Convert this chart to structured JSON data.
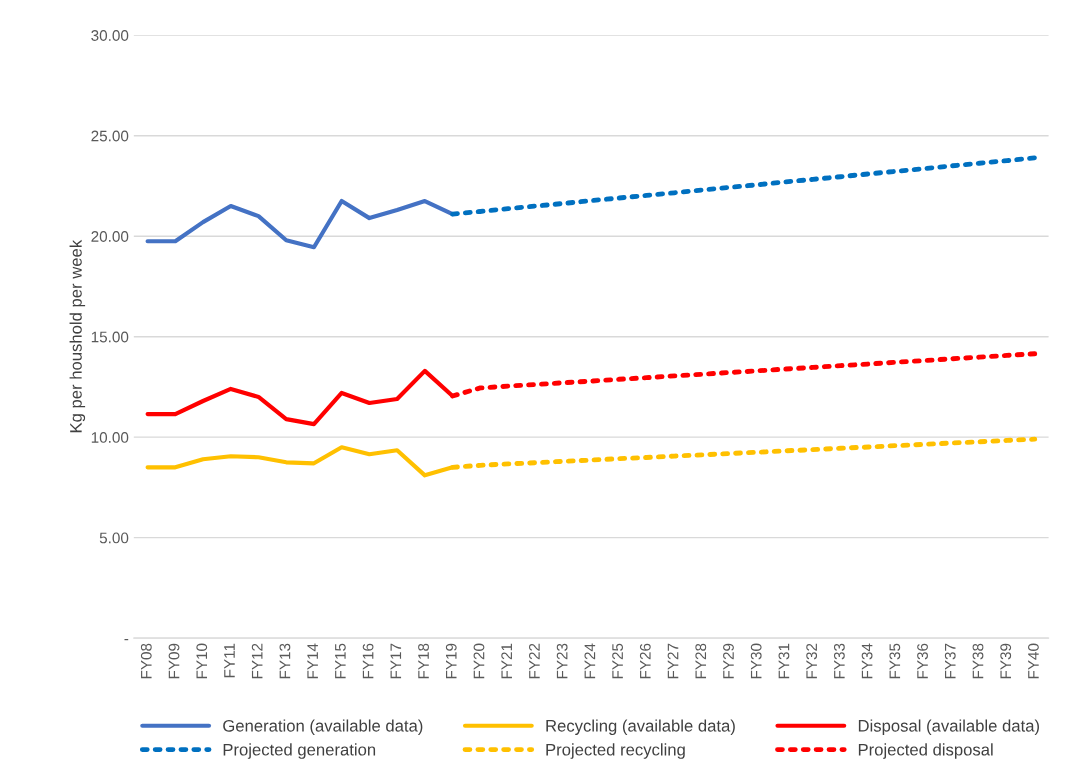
{
  "chart_data": {
    "type": "line",
    "ylabel": "Kg per houshold per week",
    "categories": [
      "FY08",
      "FY09",
      "FY10",
      "FY11",
      "FY12",
      "FY13",
      "FY14",
      "FY15",
      "FY16",
      "FY17",
      "FY18",
      "FY19",
      "FY20",
      "FY21",
      "FY22",
      "FY23",
      "FY24",
      "FY25",
      "FY26",
      "FY27",
      "FY28",
      "FY29",
      "FY30",
      "FY31",
      "FY32",
      "FY33",
      "FY34",
      "FY35",
      "FY36",
      "FY37",
      "FY38",
      "FY39",
      "FY40"
    ],
    "series": [
      {
        "name": "Generation (available data)",
        "color": "#4472c4",
        "line_style": "solid",
        "values": [
          19.75,
          19.75,
          20.7,
          21.5,
          21.0,
          19.8,
          19.45,
          21.75,
          20.9,
          21.3,
          21.75,
          21.1,
          null,
          null,
          null,
          null,
          null,
          null,
          null,
          null,
          null,
          null,
          null,
          null,
          null,
          null,
          null,
          null,
          null,
          null,
          null,
          null,
          null
        ]
      },
      {
        "name": "Recycling (available data)",
        "color": "#ffc000",
        "line_style": "solid",
        "values": [
          8.5,
          8.5,
          8.9,
          9.05,
          9.0,
          8.75,
          8.7,
          9.5,
          9.15,
          9.35,
          8.1,
          8.5,
          null,
          null,
          null,
          null,
          null,
          null,
          null,
          null,
          null,
          null,
          null,
          null,
          null,
          null,
          null,
          null,
          null,
          null,
          null,
          null,
          null
        ]
      },
      {
        "name": "Disposal (available data)",
        "color": "#ff0000",
        "line_style": "solid",
        "values": [
          11.15,
          11.15,
          11.8,
          12.4,
          12.0,
          10.9,
          10.65,
          12.2,
          11.7,
          11.9,
          13.3,
          12.05,
          null,
          null,
          null,
          null,
          null,
          null,
          null,
          null,
          null,
          null,
          null,
          null,
          null,
          null,
          null,
          null,
          null,
          null,
          null,
          null,
          null
        ]
      },
      {
        "name": "Projected generation",
        "color": "#0070c0",
        "line_style": "dotted",
        "values": [
          null,
          null,
          null,
          null,
          null,
          null,
          null,
          null,
          null,
          null,
          null,
          21.1,
          21.23,
          21.37,
          21.5,
          21.63,
          21.77,
          21.9,
          22.03,
          22.16,
          22.3,
          22.43,
          22.56,
          22.7,
          22.83,
          22.96,
          23.1,
          23.23,
          23.36,
          23.5,
          23.63,
          23.76,
          23.9
        ]
      },
      {
        "name": "Projected recycling",
        "color": "#ffc000",
        "line_style": "dotted",
        "values": [
          null,
          null,
          null,
          null,
          null,
          null,
          null,
          null,
          null,
          null,
          null,
          8.5,
          8.6,
          8.67,
          8.73,
          8.8,
          8.86,
          8.93,
          8.99,
          9.06,
          9.12,
          9.19,
          9.25,
          9.32,
          9.38,
          9.45,
          9.51,
          9.58,
          9.64,
          9.71,
          9.77,
          9.84,
          9.9
        ]
      },
      {
        "name": "Projected disposal",
        "color": "#ff0000",
        "line_style": "dotted",
        "values": [
          null,
          null,
          null,
          null,
          null,
          null,
          null,
          null,
          null,
          null,
          null,
          12.05,
          12.45,
          12.54,
          12.62,
          12.71,
          12.79,
          12.88,
          12.96,
          13.05,
          13.13,
          13.22,
          13.3,
          13.39,
          13.47,
          13.56,
          13.64,
          13.73,
          13.81,
          13.9,
          13.98,
          14.07,
          14.15
        ]
      }
    ],
    "ylim": [
      0,
      30
    ],
    "yticks": [
      {
        "value": 0,
        "label": "-"
      },
      {
        "value": 5,
        "label": "5.00"
      },
      {
        "value": 10,
        "label": "10.00"
      },
      {
        "value": 15,
        "label": "15.00"
      },
      {
        "value": 20,
        "label": "20.00"
      },
      {
        "value": 25,
        "label": "25.00"
      },
      {
        "value": 30,
        "label": "30.00"
      }
    ],
    "grid": "y",
    "legend": "bottom",
    "marker": "none"
  }
}
